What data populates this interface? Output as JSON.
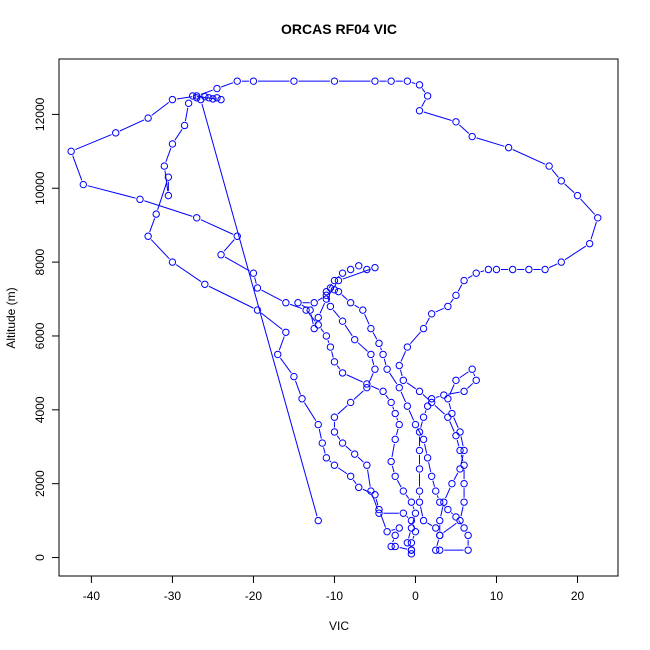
{
  "chart_data": {
    "type": "line",
    "title": "ORCAS RF04 VIC",
    "xlabel": "VIC",
    "ylabel": "Altitude (m)",
    "xlim": [
      -44,
      25
    ],
    "ylim": [
      -500,
      13500
    ],
    "x_ticks": [
      -40,
      -30,
      -20,
      -10,
      0,
      10,
      20
    ],
    "y_ticks": [
      0,
      2000,
      4000,
      6000,
      8000,
      10000,
      12000
    ],
    "grid": false,
    "marker": "open-circle",
    "series_color": "#0000ff",
    "series": [
      {
        "points": [
          [
            -12,
            1000
          ],
          [
            -26.5,
            12400
          ],
          [
            -27,
            12450
          ],
          [
            -26,
            12480
          ],
          [
            -25.5,
            12450
          ],
          [
            -25,
            12420
          ],
          [
            -24.5,
            12450
          ],
          [
            -24,
            12400
          ],
          [
            -27.5,
            12500
          ],
          [
            -28,
            12300
          ],
          [
            -28.5,
            11700
          ],
          [
            -30,
            11200
          ],
          [
            -31,
            10600
          ],
          [
            -30.5,
            9800
          ],
          [
            -30.5,
            10300
          ],
          [
            -32,
            9300
          ],
          [
            -33,
            8700
          ],
          [
            -30,
            8000
          ],
          [
            -26,
            7400
          ],
          [
            -19.5,
            6700
          ],
          [
            -16,
            6100
          ],
          [
            -17,
            5500
          ],
          [
            -15,
            4900
          ],
          [
            -14,
            4300
          ],
          [
            -12,
            3600
          ],
          [
            -11.5,
            3100
          ],
          [
            -11,
            2700
          ],
          [
            -10,
            2500
          ],
          [
            -8,
            2200
          ],
          [
            -7,
            1900
          ],
          [
            -5,
            1700
          ],
          [
            -4.5,
            1300
          ],
          [
            -3.5,
            700
          ],
          [
            -2,
            800
          ],
          [
            -2.5,
            600
          ],
          [
            -3,
            300
          ],
          [
            -2.5,
            300
          ],
          [
            -0.5,
            200
          ],
          [
            -0.5,
            400
          ],
          [
            0,
            700
          ],
          [
            -0.5,
            1000
          ],
          [
            -1.5,
            1200
          ],
          [
            -4.5,
            1200
          ],
          [
            -5.5,
            1800
          ],
          [
            -6,
            2500
          ],
          [
            -7.5,
            2800
          ],
          [
            -9,
            3100
          ],
          [
            -10,
            3400
          ],
          [
            -10,
            3800
          ],
          [
            -8,
            4200
          ],
          [
            -6,
            4600
          ],
          [
            -5,
            5100
          ],
          [
            -5.5,
            5500
          ],
          [
            -7.5,
            5900
          ],
          [
            -9,
            6400
          ],
          [
            -10.5,
            6800
          ],
          [
            -11,
            7200
          ],
          [
            -10,
            7500
          ],
          [
            -9,
            7700
          ],
          [
            -8,
            7800
          ],
          [
            -7,
            7900
          ],
          [
            -6,
            7800
          ],
          [
            -5,
            7850
          ],
          [
            -9.5,
            7500
          ],
          [
            -11,
            7000
          ],
          [
            -12,
            6500
          ],
          [
            -12.5,
            6200
          ],
          [
            -13,
            6700
          ],
          [
            -14.5,
            6900
          ],
          [
            -12.5,
            6900
          ],
          [
            -11,
            7100
          ],
          [
            -10.5,
            7300
          ],
          [
            -10,
            7250
          ],
          [
            -9.5,
            7200
          ],
          [
            -8,
            6900
          ],
          [
            -6.5,
            6700
          ],
          [
            -5.5,
            6200
          ],
          [
            -4.5,
            5800
          ],
          [
            -4,
            5500
          ],
          [
            -3.5,
            5100
          ],
          [
            -2,
            4600
          ],
          [
            -1,
            4100
          ],
          [
            0,
            3600
          ],
          [
            1,
            3200
          ],
          [
            1.5,
            2700
          ],
          [
            2,
            2200
          ],
          [
            2.5,
            1800
          ],
          [
            3,
            1500
          ],
          [
            4,
            1300
          ],
          [
            5,
            1100
          ],
          [
            6,
            800
          ],
          [
            6.5,
            600
          ],
          [
            6.5,
            200
          ],
          [
            3,
            200
          ],
          [
            2.5,
            200
          ],
          [
            3,
            600
          ],
          [
            3,
            1000
          ],
          [
            3.5,
            1500
          ],
          [
            4.5,
            2000
          ],
          [
            5.5,
            2400
          ],
          [
            6,
            2900
          ],
          [
            5.5,
            3400
          ],
          [
            4.5,
            3900
          ],
          [
            4,
            4300
          ],
          [
            5,
            4800
          ],
          [
            7,
            5100
          ],
          [
            7.5,
            4800
          ],
          [
            6,
            4500
          ],
          [
            3.5,
            4400
          ],
          [
            2,
            4300
          ],
          [
            1.5,
            4100
          ],
          [
            1,
            3800
          ],
          [
            0.5,
            3400
          ],
          [
            0.5,
            2900
          ],
          [
            0.5,
            2400
          ],
          [
            0.5,
            1800
          ],
          [
            0.5,
            1500
          ],
          [
            1,
            1000
          ],
          [
            2.5,
            800
          ],
          [
            3,
            600
          ],
          [
            5.5,
            1000
          ],
          [
            6,
            1500
          ],
          [
            6,
            2000
          ],
          [
            6,
            2500
          ],
          [
            5.5,
            2900
          ],
          [
            5,
            3300
          ],
          [
            4,
            3800
          ],
          [
            2,
            4200
          ],
          [
            0.5,
            4500
          ],
          [
            -1.5,
            4800
          ],
          [
            -2,
            5200
          ],
          [
            -1,
            5700
          ],
          [
            1,
            6200
          ],
          [
            2,
            6600
          ],
          [
            4,
            6800
          ],
          [
            5,
            7100
          ],
          [
            6,
            7500
          ],
          [
            7.5,
            7700
          ],
          [
            9,
            7800
          ],
          [
            10,
            7800
          ],
          [
            12,
            7800
          ],
          [
            14,
            7800
          ],
          [
            16,
            7800
          ],
          [
            18,
            8000
          ],
          [
            21.5,
            8500
          ],
          [
            22.5,
            9200
          ],
          [
            20,
            9800
          ],
          [
            18,
            10200
          ],
          [
            16.5,
            10600
          ],
          [
            11.5,
            11100
          ],
          [
            7,
            11400
          ],
          [
            5,
            11800
          ],
          [
            0.5,
            12100
          ],
          [
            1.5,
            12500
          ],
          [
            0.5,
            12800
          ],
          [
            -1,
            12900
          ],
          [
            -3,
            12900
          ],
          [
            -5,
            12900
          ],
          [
            -10,
            12900
          ],
          [
            -15,
            12900
          ],
          [
            -20,
            12900
          ],
          [
            -22,
            12900
          ],
          [
            -24.5,
            12700
          ],
          [
            -27,
            12500
          ],
          [
            -30,
            12400
          ],
          [
            -33,
            11900
          ],
          [
            -37,
            11500
          ],
          [
            -42.5,
            11000
          ],
          [
            -41,
            10100
          ],
          [
            -34,
            9700
          ],
          [
            -27,
            9200
          ],
          [
            -22,
            8700
          ],
          [
            -24,
            8200
          ],
          [
            -20,
            7700
          ],
          [
            -19.5,
            7300
          ],
          [
            -16,
            6900
          ],
          [
            -13.5,
            6700
          ],
          [
            -12,
            6300
          ],
          [
            -11,
            6000
          ],
          [
            -10.5,
            5700
          ],
          [
            -10,
            5300
          ],
          [
            -9,
            5000
          ],
          [
            -6,
            4700
          ],
          [
            -4,
            4500
          ],
          [
            -3,
            4200
          ],
          [
            -2.5,
            3900
          ],
          [
            -2,
            3600
          ],
          [
            -2.5,
            3200
          ],
          [
            -3,
            2600
          ],
          [
            -2.5,
            2200
          ],
          [
            -1.5,
            1800
          ],
          [
            -0.5,
            1500
          ],
          [
            0,
            1200
          ],
          [
            -0.5,
            800
          ],
          [
            -1,
            400
          ],
          [
            -0.5,
            200
          ],
          [
            -0.5,
            100
          ]
        ]
      }
    ]
  }
}
